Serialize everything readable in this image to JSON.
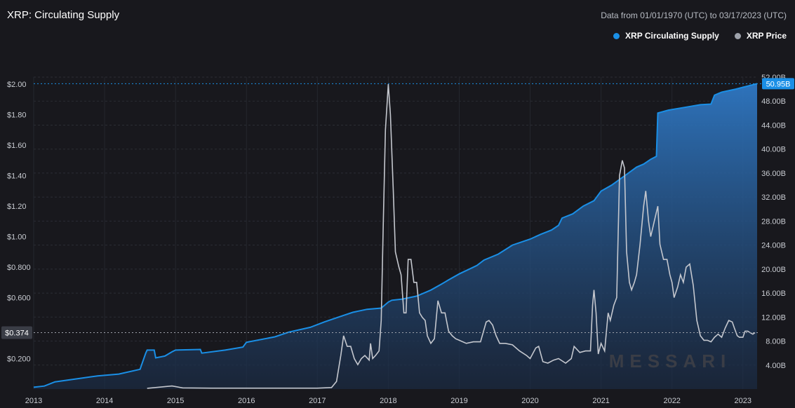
{
  "header": {
    "title": "XRP: Circulating Supply",
    "date_range": "Data from 01/01/1970 (UTC) to 03/17/2023 (UTC)"
  },
  "legend": [
    {
      "label": "XRP Circulating Supply",
      "color": "#1a8fe6"
    },
    {
      "label": "XRP Price",
      "color": "#9ea2ab"
    }
  ],
  "watermark": "MESSARI",
  "chart_data": {
    "type": "area",
    "x_ticks": [
      "2013",
      "2014",
      "2015",
      "2016",
      "2017",
      "2018",
      "2019",
      "2020",
      "2021",
      "2022",
      "2023"
    ],
    "xlim": [
      "2013-01-01",
      "2023-03-17"
    ],
    "left_axis": {
      "ticks": [
        "$0.200",
        "$0.600",
        "$0.800",
        "$1.00",
        "$1.20",
        "$1.40",
        "$1.60",
        "$1.80",
        "$2.00"
      ],
      "ylim": [
        0,
        2.0
      ],
      "current_label": "$0.374"
    },
    "right_axis": {
      "ticks": [
        "4.00B",
        "8.00B",
        "12.00B",
        "16.00B",
        "20.00B",
        "24.00B",
        "28.00B",
        "32.00B",
        "36.00B",
        "40.00B",
        "44.00B",
        "48.00B",
        "52.00B"
      ],
      "ylim": [
        0,
        52
      ],
      "current_label": "50.95B"
    },
    "grid": true,
    "legend_position": "top-right",
    "series": [
      {
        "name": "XRP Circulating Supply",
        "color": "#1a8fe6",
        "axis": "right",
        "unit": "B",
        "points": [
          [
            2013.0,
            0.3
          ],
          [
            2013.15,
            0.5
          ],
          [
            2013.3,
            1.2
          ],
          [
            2013.6,
            1.7
          ],
          [
            2013.9,
            2.2
          ],
          [
            2014.2,
            2.5
          ],
          [
            2014.5,
            3.3
          ],
          [
            2014.55,
            5.0
          ],
          [
            2014.58,
            6.0
          ],
          [
            2014.6,
            6.5
          ],
          [
            2014.7,
            6.5
          ],
          [
            2014.72,
            5.2
          ],
          [
            2014.85,
            5.5
          ],
          [
            2014.95,
            6.2
          ],
          [
            2015.0,
            6.5
          ],
          [
            2015.35,
            6.6
          ],
          [
            2015.37,
            6.0
          ],
          [
            2015.7,
            6.5
          ],
          [
            2015.95,
            7.0
          ],
          [
            2016.0,
            7.8
          ],
          [
            2016.4,
            8.7
          ],
          [
            2016.6,
            9.5
          ],
          [
            2016.9,
            10.3
          ],
          [
            2017.1,
            11.2
          ],
          [
            2017.35,
            12.2
          ],
          [
            2017.5,
            12.8
          ],
          [
            2017.7,
            13.3
          ],
          [
            2017.9,
            13.5
          ],
          [
            2018.0,
            14.5
          ],
          [
            2018.05,
            14.8
          ],
          [
            2018.2,
            15.0
          ],
          [
            2018.4,
            15.5
          ],
          [
            2018.6,
            16.5
          ],
          [
            2018.75,
            17.5
          ],
          [
            2018.85,
            18.2
          ],
          [
            2019.0,
            19.2
          ],
          [
            2019.25,
            20.6
          ],
          [
            2019.35,
            21.5
          ],
          [
            2019.55,
            22.5
          ],
          [
            2019.75,
            24.0
          ],
          [
            2020.0,
            25.0
          ],
          [
            2020.15,
            25.8
          ],
          [
            2020.3,
            26.5
          ],
          [
            2020.4,
            27.3
          ],
          [
            2020.45,
            28.5
          ],
          [
            2020.6,
            29.2
          ],
          [
            2020.75,
            30.5
          ],
          [
            2020.9,
            31.4
          ],
          [
            2021.0,
            33.0
          ],
          [
            2021.15,
            34.0
          ],
          [
            2021.35,
            35.7
          ],
          [
            2021.5,
            37.0
          ],
          [
            2021.6,
            37.5
          ],
          [
            2021.7,
            38.3
          ],
          [
            2021.78,
            38.8
          ],
          [
            2021.8,
            46.0
          ],
          [
            2021.95,
            46.5
          ],
          [
            2022.2,
            47.0
          ],
          [
            2022.4,
            47.4
          ],
          [
            2022.55,
            47.5
          ],
          [
            2022.6,
            49.0
          ],
          [
            2022.7,
            49.5
          ],
          [
            2022.9,
            50.0
          ],
          [
            2023.0,
            50.3
          ],
          [
            2023.2,
            50.9
          ]
        ]
      },
      {
        "name": "XRP Price",
        "color": "#c4c7ce",
        "axis": "left",
        "unit": "$",
        "points": [
          [
            2014.6,
            0.005
          ],
          [
            2014.95,
            0.02
          ],
          [
            2015.1,
            0.008
          ],
          [
            2015.5,
            0.006
          ],
          [
            2016.0,
            0.006
          ],
          [
            2016.5,
            0.006
          ],
          [
            2017.0,
            0.006
          ],
          [
            2017.2,
            0.01
          ],
          [
            2017.27,
            0.05
          ],
          [
            2017.33,
            0.22
          ],
          [
            2017.37,
            0.35
          ],
          [
            2017.42,
            0.28
          ],
          [
            2017.47,
            0.28
          ],
          [
            2017.52,
            0.2
          ],
          [
            2017.57,
            0.16
          ],
          [
            2017.62,
            0.2
          ],
          [
            2017.67,
            0.22
          ],
          [
            2017.73,
            0.19
          ],
          [
            2017.75,
            0.3
          ],
          [
            2017.78,
            0.2
          ],
          [
            2017.82,
            0.22
          ],
          [
            2017.87,
            0.25
          ],
          [
            2017.9,
            0.45
          ],
          [
            2017.93,
            1.1
          ],
          [
            2017.96,
            1.7
          ],
          [
            2018.0,
            2.0
          ],
          [
            2018.03,
            1.8
          ],
          [
            2018.07,
            1.3
          ],
          [
            2018.1,
            0.9
          ],
          [
            2018.15,
            0.8
          ],
          [
            2018.18,
            0.75
          ],
          [
            2018.22,
            0.5
          ],
          [
            2018.25,
            0.5
          ],
          [
            2018.28,
            0.85
          ],
          [
            2018.32,
            0.85
          ],
          [
            2018.36,
            0.7
          ],
          [
            2018.4,
            0.7
          ],
          [
            2018.44,
            0.5
          ],
          [
            2018.48,
            0.47
          ],
          [
            2018.52,
            0.45
          ],
          [
            2018.55,
            0.35
          ],
          [
            2018.6,
            0.3
          ],
          [
            2018.65,
            0.33
          ],
          [
            2018.7,
            0.58
          ],
          [
            2018.75,
            0.5
          ],
          [
            2018.8,
            0.5
          ],
          [
            2018.85,
            0.38
          ],
          [
            2018.9,
            0.35
          ],
          [
            2018.95,
            0.33
          ],
          [
            2019.0,
            0.32
          ],
          [
            2019.1,
            0.3
          ],
          [
            2019.2,
            0.31
          ],
          [
            2019.3,
            0.31
          ],
          [
            2019.38,
            0.44
          ],
          [
            2019.42,
            0.45
          ],
          [
            2019.47,
            0.42
          ],
          [
            2019.52,
            0.35
          ],
          [
            2019.57,
            0.3
          ],
          [
            2019.65,
            0.3
          ],
          [
            2019.75,
            0.29
          ],
          [
            2019.85,
            0.25
          ],
          [
            2019.95,
            0.22
          ],
          [
            2020.0,
            0.2
          ],
          [
            2020.08,
            0.27
          ],
          [
            2020.12,
            0.28
          ],
          [
            2020.18,
            0.18
          ],
          [
            2020.25,
            0.17
          ],
          [
            2020.33,
            0.19
          ],
          [
            2020.4,
            0.2
          ],
          [
            2020.5,
            0.17
          ],
          [
            2020.58,
            0.2
          ],
          [
            2020.62,
            0.28
          ],
          [
            2020.7,
            0.24
          ],
          [
            2020.78,
            0.25
          ],
          [
            2020.85,
            0.25
          ],
          [
            2020.88,
            0.55
          ],
          [
            2020.9,
            0.65
          ],
          [
            2020.93,
            0.5
          ],
          [
            2020.96,
            0.23
          ],
          [
            2021.0,
            0.3
          ],
          [
            2021.05,
            0.25
          ],
          [
            2021.1,
            0.5
          ],
          [
            2021.13,
            0.45
          ],
          [
            2021.18,
            0.55
          ],
          [
            2021.22,
            0.6
          ],
          [
            2021.26,
            1.4
          ],
          [
            2021.3,
            1.5
          ],
          [
            2021.33,
            1.45
          ],
          [
            2021.36,
            0.9
          ],
          [
            2021.4,
            0.7
          ],
          [
            2021.43,
            0.65
          ],
          [
            2021.47,
            0.7
          ],
          [
            2021.5,
            0.75
          ],
          [
            2021.55,
            0.95
          ],
          [
            2021.6,
            1.2
          ],
          [
            2021.63,
            1.3
          ],
          [
            2021.67,
            1.1
          ],
          [
            2021.7,
            1.0
          ],
          [
            2021.75,
            1.1
          ],
          [
            2021.8,
            1.2
          ],
          [
            2021.83,
            0.95
          ],
          [
            2021.88,
            0.85
          ],
          [
            2021.93,
            0.85
          ],
          [
            2021.97,
            0.75
          ],
          [
            2022.0,
            0.7
          ],
          [
            2022.03,
            0.6
          ],
          [
            2022.08,
            0.67
          ],
          [
            2022.12,
            0.75
          ],
          [
            2022.16,
            0.7
          ],
          [
            2022.2,
            0.8
          ],
          [
            2022.25,
            0.82
          ],
          [
            2022.3,
            0.68
          ],
          [
            2022.35,
            0.45
          ],
          [
            2022.4,
            0.35
          ],
          [
            2022.45,
            0.32
          ],
          [
            2022.5,
            0.32
          ],
          [
            2022.55,
            0.31
          ],
          [
            2022.6,
            0.34
          ],
          [
            2022.65,
            0.36
          ],
          [
            2022.7,
            0.34
          ],
          [
            2022.75,
            0.4
          ],
          [
            2022.8,
            0.45
          ],
          [
            2022.85,
            0.44
          ],
          [
            2022.88,
            0.4
          ],
          [
            2022.92,
            0.35
          ],
          [
            2022.95,
            0.34
          ],
          [
            2023.0,
            0.34
          ],
          [
            2023.03,
            0.38
          ],
          [
            2023.07,
            0.38
          ],
          [
            2023.1,
            0.37
          ],
          [
            2023.14,
            0.36
          ],
          [
            2023.17,
            0.37
          ]
        ]
      }
    ]
  }
}
